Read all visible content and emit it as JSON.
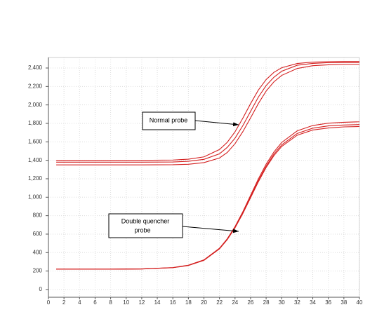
{
  "chart_data": {
    "type": "line",
    "x": [
      1,
      4,
      8,
      12,
      16,
      18,
      20,
      22,
      23,
      24,
      25,
      26,
      27,
      28,
      29,
      30,
      32,
      34,
      36,
      38,
      40
    ],
    "series": [
      {
        "color": "#d42020",
        "values": [
          1400,
          1400,
          1400,
          1400,
          1403,
          1412,
          1437,
          1517,
          1595,
          1709,
          1856,
          2014,
          2161,
          2275,
          2353,
          2403,
          2449,
          2464,
          2468,
          2470,
          2470
        ]
      },
      {
        "color": "#d42020",
        "values": [
          1380,
          1380,
          1380,
          1380,
          1382,
          1389,
          1410,
          1470,
          1540,
          1640,
          1775,
          1930,
          2085,
          2210,
          2300,
          2365,
          2430,
          2450,
          2458,
          2460,
          2460
        ]
      },
      {
        "color": "#d42020",
        "values": [
          1350,
          1350,
          1350,
          1350,
          1352,
          1357,
          1375,
          1425,
          1485,
          1580,
          1710,
          1860,
          2015,
          2150,
          2250,
          2320,
          2395,
          2425,
          2435,
          2440,
          2440
        ]
      },
      {
        "color": "#d42020",
        "values": [
          220,
          220,
          220,
          223,
          238,
          263,
          321,
          447,
          550,
          682,
          842,
          1020,
          1198,
          1358,
          1490,
          1593,
          1719,
          1777,
          1802,
          1812,
          1817
        ]
      },
      {
        "color": "#d42020",
        "values": [
          220,
          220,
          220,
          223,
          237,
          262,
          319,
          443,
          543,
          674,
          831,
          1005,
          1179,
          1336,
          1467,
          1567,
          1691,
          1748,
          1773,
          1782,
          1787
        ]
      },
      {
        "color": "#d42020",
        "values": [
          220,
          220,
          220,
          222,
          236,
          260,
          316,
          440,
          540,
          668,
          823,
          995,
          1167,
          1322,
          1450,
          1550,
          1672,
          1728,
          1750,
          1762,
          1766
        ]
      }
    ],
    "xlim": [
      0,
      40
    ],
    "xticks": [
      0,
      2,
      4,
      6,
      8,
      10,
      12,
      14,
      16,
      18,
      20,
      22,
      24,
      26,
      28,
      30,
      32,
      34,
      36,
      38,
      40
    ],
    "ylim": [
      -84,
      2514
    ],
    "yticks": [
      0,
      200,
      400,
      600,
      800,
      {
        "value": 1000,
        "label": "1,000"
      },
      {
        "value": 1200,
        "label": "1,200"
      },
      {
        "value": 1400,
        "label": "1,400"
      },
      {
        "value": 1600,
        "label": "1,600"
      },
      {
        "value": 1800,
        "label": "1,800"
      },
      {
        "value": 2000,
        "label": "2,000"
      },
      {
        "value": 2200,
        "label": "2,200"
      },
      {
        "value": 2400,
        "label": "2,400"
      }
    ],
    "grid": true,
    "annotations": [
      {
        "lines": [
          "Normal probe"
        ]
      },
      {
        "lines": [
          "Double quencher",
          "probe"
        ]
      }
    ]
  }
}
